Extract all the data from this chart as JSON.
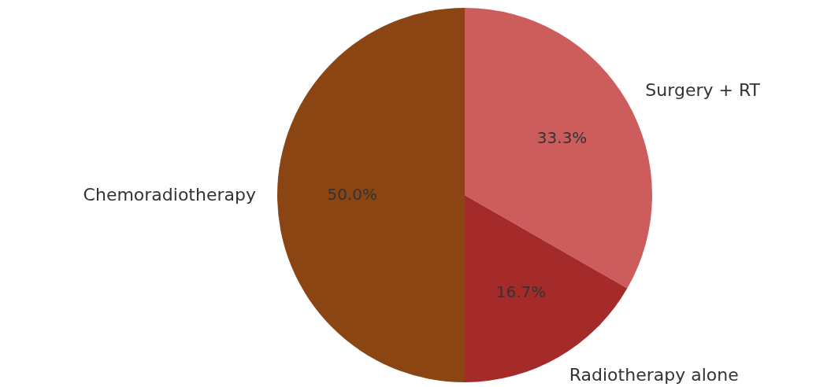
{
  "chart_data": {
    "type": "pie",
    "categories": [
      "Surgery + RT",
      "Radiotherapy alone",
      "Chemoradiotherapy"
    ],
    "values": [
      33.3,
      16.7,
      50.0
    ],
    "colors": [
      "#cd5c5c",
      "#a52a2a",
      "#8b4513"
    ],
    "value_labels": [
      "33.3%",
      "16.7%",
      "50.0%"
    ]
  }
}
